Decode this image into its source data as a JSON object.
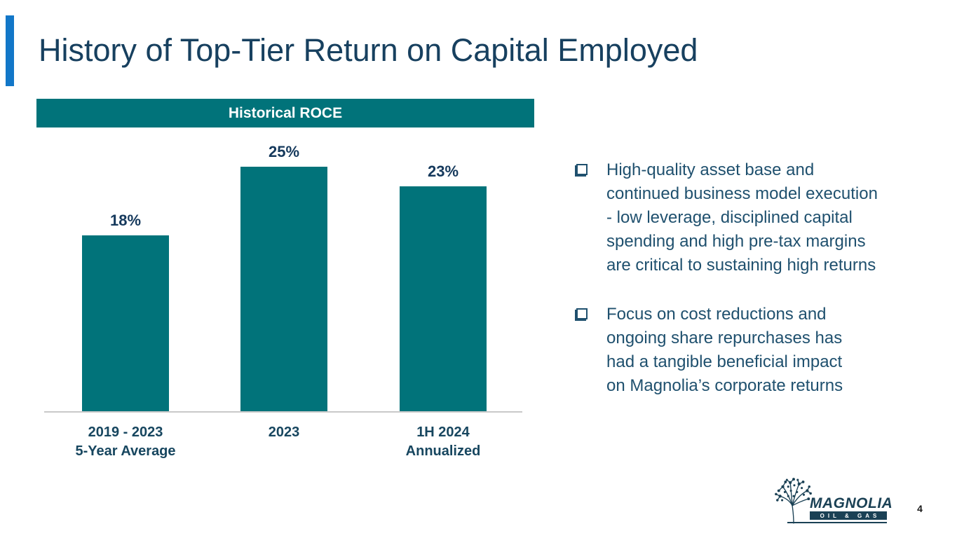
{
  "slide": {
    "title": "History of Top-Tier Return on Capital Employed",
    "page_number": "4"
  },
  "chart_data": {
    "type": "bar",
    "title": "Historical ROCE",
    "categories": [
      "2019 - 2023\n5-Year Average",
      "2023",
      "1H 2024\nAnnualized"
    ],
    "values": [
      18,
      25,
      23
    ],
    "value_labels": [
      "18%",
      "25%",
      "23%"
    ],
    "unit": "%",
    "ylim": [
      0,
      27
    ],
    "xlabel": "",
    "ylabel": "",
    "gridlines": false,
    "legend": "none",
    "bar_color": "#01737A",
    "value_label_color": "#15395C"
  },
  "bullets": [
    {
      "text": "High-quality asset base and\ncontinued business model execution\n- low leverage, disciplined capital\nspending and high pre-tax margins\nare critical to sustaining high returns"
    },
    {
      "text": "Focus on cost reductions and\nongoing share repurchases has\nhad a tangible beneficial impact\non Magnolia’s corporate returns"
    }
  ],
  "logo": {
    "brand": "MAGNOLIA",
    "tagline": "OIL & GAS"
  },
  "colors": {
    "accent_blue": "#1277C8",
    "title_navy": "#17405F",
    "teal": "#01737A",
    "bullet_navy": "#1F506E",
    "axis_gray": "#C9C9C9",
    "logo_navy": "#1B4155"
  }
}
